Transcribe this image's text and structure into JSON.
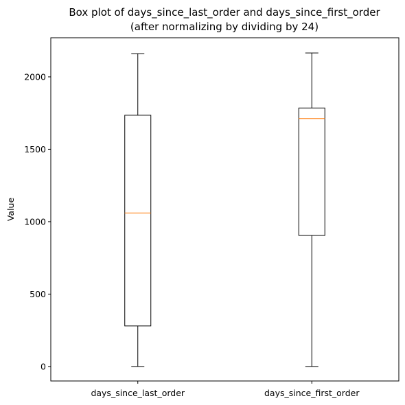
{
  "chart_data": {
    "type": "box",
    "title_line1": "Box plot of days_since_last_order and days_since_first_order",
    "title_line2": "(after normalizing by dividing by 24)",
    "ylabel": "Value",
    "xlabel": "",
    "ylim": [
      -100,
      2270
    ],
    "yticks": [
      0,
      500,
      1000,
      1500,
      2000
    ],
    "grid": false,
    "categories": [
      "days_since_last_order",
      "days_since_first_order"
    ],
    "boxes": [
      {
        "label": "days_since_last_order",
        "whisker_low": 0,
        "q1": 280,
        "median": 1060,
        "q3": 1735,
        "whisker_high": 2160
      },
      {
        "label": "days_since_first_order",
        "whisker_low": 0,
        "q1": 905,
        "median": 1712,
        "q3": 1785,
        "whisker_high": 2165
      }
    ],
    "colors": {
      "box": "#000000",
      "median": "#ff7f0e",
      "frame": "#000000"
    }
  }
}
